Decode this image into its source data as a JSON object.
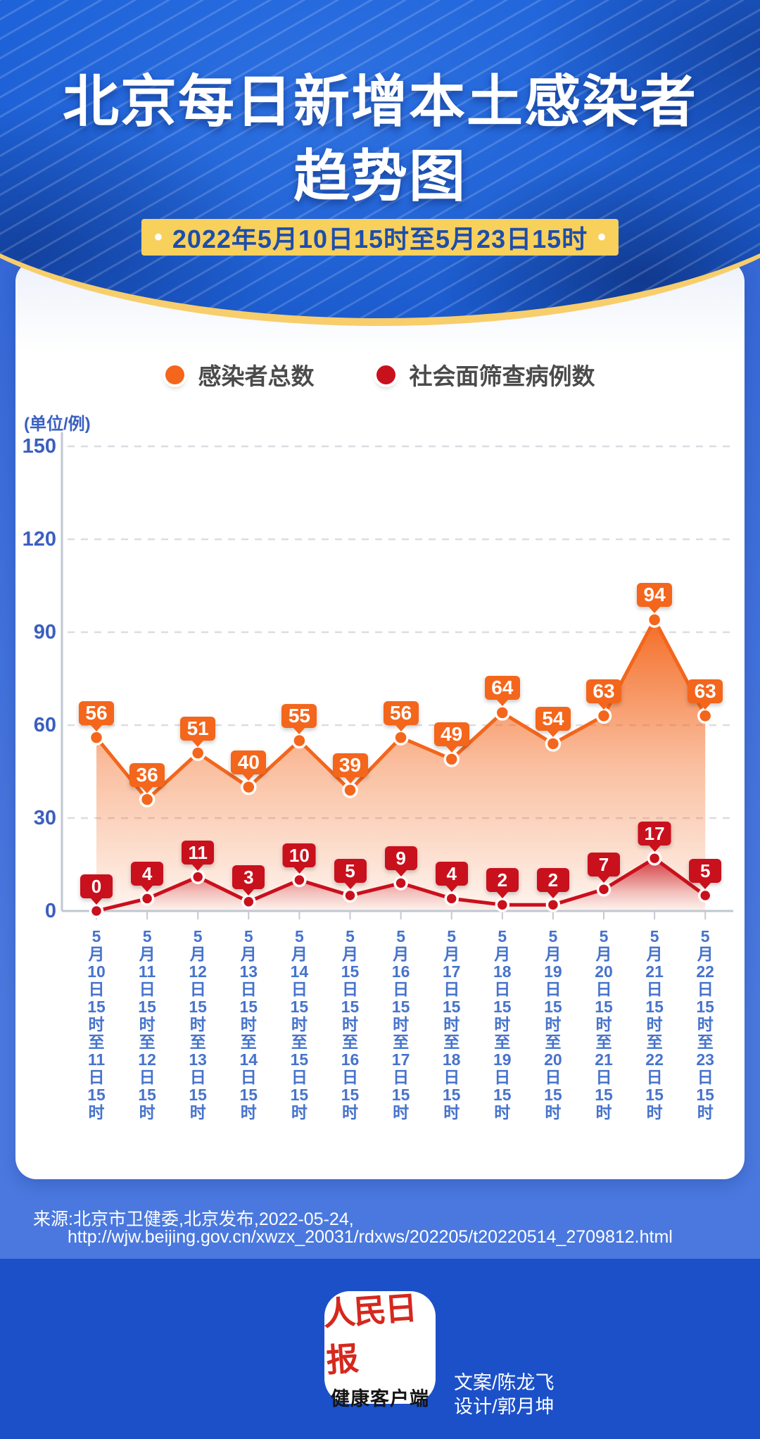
{
  "header": {
    "title_line1": "北京每日新增本土感染者",
    "title_line2": "趋势图",
    "subtitle": "2022年5月10日15时至5月23日15时",
    "dot": "•",
    "accent_gold": "#f7ce6b",
    "banner_bg": "#f8d05c"
  },
  "legend": {
    "item1": {
      "label": "感染者总数",
      "color": "#f3661c"
    },
    "item2": {
      "label": "社会面筛查病例数",
      "color": "#c9101d"
    }
  },
  "chart_data": {
    "type": "line",
    "unit_label": "(单位/例)",
    "ylim": [
      0,
      150
    ],
    "y_ticks": [
      150,
      120,
      90,
      60,
      30,
      0
    ],
    "grid": "horizontal dashed",
    "legend_position": "top",
    "categories": [
      "5月10日15时至11日15时",
      "5月11日15时至12日15时",
      "5月12日15时至13日15时",
      "5月13日15时至14日15时",
      "5月14日15时至15日15时",
      "5月15日15时至16日15时",
      "5月16日15时至17日15时",
      "5月17日15时至18日15时",
      "5月18日15时至19日15时",
      "5月19日15时至20日15时",
      "5月20日15时至21日15时",
      "5月21日15时至22日15时",
      "5月22日15时至23日15时"
    ],
    "series": [
      {
        "name": "感染者总数",
        "color": "#f3661c",
        "values": [
          56,
          36,
          51,
          40,
          55,
          39,
          56,
          49,
          64,
          54,
          63,
          94,
          63
        ]
      },
      {
        "name": "社会面筛查病例数",
        "color": "#c9101d",
        "values": [
          0,
          4,
          11,
          3,
          10,
          5,
          9,
          4,
          2,
          2,
          7,
          17,
          5
        ]
      }
    ]
  },
  "source": {
    "line1": "来源:北京市卫健委,北京发布,2022-05-24,",
    "line2": "http://wjw.beijing.gov.cn/xwzx_20031/rdxws/202205/t20220514_2709812.html"
  },
  "footer": {
    "logo_line1": "人民日报",
    "logo_line2": "健康客户端",
    "credit_line1": "文案/陈龙飞",
    "credit_line2": "设计/郭月坤"
  }
}
